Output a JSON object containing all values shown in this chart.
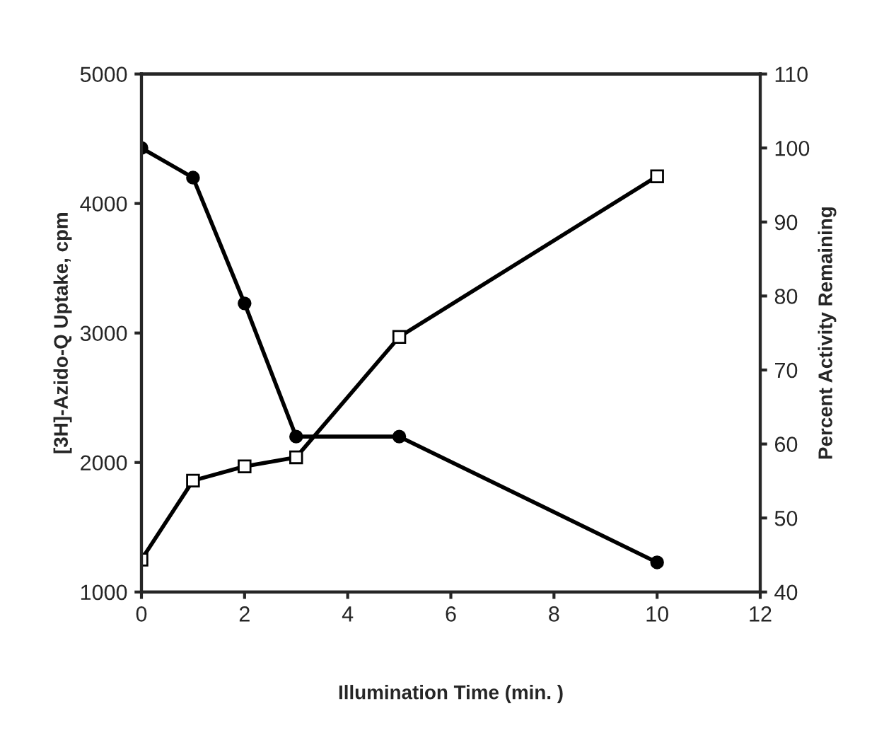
{
  "chart_data": {
    "type": "line",
    "xlabel": "Illumination Time (min. )",
    "ylabel": "[3H]-Azido-Q Uptake, cpm",
    "y2label": "Percent Activity Remaining",
    "x": [
      0,
      1,
      2,
      3,
      5,
      10
    ],
    "series": [
      {
        "color": "#000000",
        "marker": "square",
        "values": [
          1250,
          1860,
          1970,
          2040,
          2970,
          4210
        ]
      },
      {
        "color": "#000000",
        "marker": "circle",
        "axis": "y2",
        "values": [
          100,
          96,
          79,
          61,
          61,
          44
        ]
      }
    ],
    "xlim": [
      0,
      12
    ],
    "xticks": [
      0,
      2,
      4,
      6,
      8,
      10,
      12
    ],
    "ylim": [
      1000,
      5000
    ],
    "yticks": [
      1000,
      2000,
      3000,
      4000,
      5000
    ],
    "y2lim": [
      40,
      110
    ],
    "y2ticks": [
      40,
      50,
      60,
      70,
      80,
      90,
      100,
      110
    ],
    "grid": false,
    "legend": false,
    "line_style": "solid"
  }
}
